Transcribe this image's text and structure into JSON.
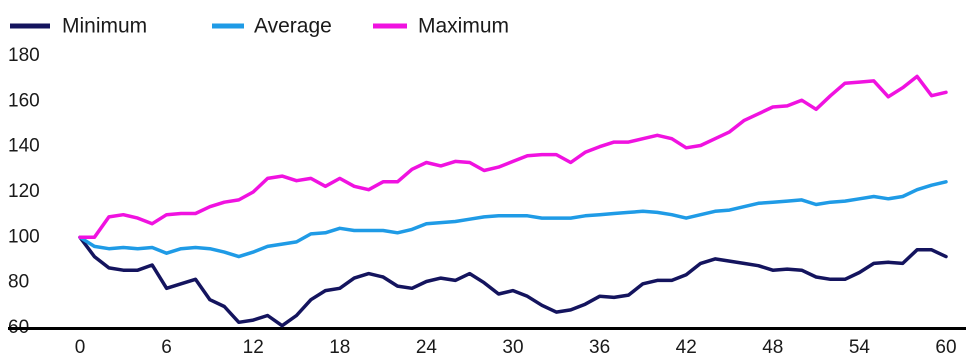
{
  "chart_data": {
    "type": "line",
    "title": "",
    "xlabel": "",
    "ylabel": "",
    "xlim": [
      0,
      60
    ],
    "ylim": [
      60,
      180
    ],
    "x_ticks": [
      "0",
      "6",
      "12",
      "18",
      "24",
      "30",
      "36",
      "42",
      "48",
      "54",
      "60"
    ],
    "y_ticks": [
      "60",
      "80",
      "100",
      "120",
      "140",
      "160",
      "180"
    ],
    "grid": false,
    "legend_position": "top-left",
    "x": [
      0,
      1,
      2,
      3,
      4,
      5,
      6,
      7,
      8,
      9,
      10,
      11,
      12,
      13,
      14,
      15,
      16,
      17,
      18,
      19,
      20,
      21,
      22,
      23,
      24,
      25,
      26,
      27,
      28,
      29,
      30,
      31,
      32,
      33,
      34,
      35,
      36,
      37,
      38,
      39,
      40,
      41,
      42,
      43,
      44,
      45,
      46,
      47,
      48,
      49,
      50,
      51,
      52,
      53,
      54,
      55,
      56,
      57,
      58,
      59,
      60
    ],
    "series": [
      {
        "name": "Minimum",
        "color": "#14145e",
        "values": [
          100,
          91.5,
          86.5,
          85.5,
          85.5,
          87.8,
          77.5,
          79.5,
          81.5,
          72.5,
          69.5,
          62.5,
          63.5,
          65.5,
          61,
          65.5,
          72.5,
          76.5,
          77.5,
          82,
          84,
          82.5,
          78.5,
          77.5,
          80.5,
          82,
          81,
          84,
          80,
          75,
          76.5,
          74,
          70,
          67,
          68,
          70.5,
          74,
          73.5,
          74.5,
          79.5,
          81,
          81,
          83.5,
          88.5,
          90.5,
          89.5,
          88.5,
          87.5,
          85.5,
          86,
          85.5,
          82.5,
          81.5,
          81.5,
          84.5,
          88.5,
          89,
          88.5,
          94.5,
          94.5,
          91.5
        ]
      },
      {
        "name": "Average",
        "color": "#1f9be6",
        "values": [
          100,
          96,
          95,
          95.5,
          95,
          95.5,
          93,
          95,
          95.5,
          95,
          93.5,
          91.5,
          93.5,
          96,
          97,
          98,
          101.5,
          102,
          104,
          103,
          103,
          103,
          102,
          103.5,
          106,
          106.5,
          107,
          108,
          109,
          109.5,
          109.5,
          109.5,
          108.5,
          108.5,
          108.5,
          109.5,
          110,
          110.5,
          111,
          111.5,
          111,
          110,
          108.5,
          110,
          111.5,
          112,
          113.5,
          115,
          115.5,
          116,
          116.5,
          114.5,
          115.5,
          116,
          117,
          118,
          117,
          118,
          121,
          123,
          124.5
        ]
      },
      {
        "name": "Maximum",
        "color": "#f012e0",
        "values": [
          100,
          100,
          109,
          110,
          108.5,
          106,
          110,
          110.5,
          110.5,
          113.5,
          115.5,
          116.5,
          120,
          126,
          127,
          125,
          126,
          122.5,
          126,
          122.5,
          121,
          124.5,
          124.5,
          130,
          133,
          131.5,
          133.5,
          133,
          129.5,
          131,
          133.5,
          136,
          136.5,
          136.5,
          133,
          137.5,
          140,
          142,
          142,
          143.5,
          145,
          143.5,
          139.5,
          140.5,
          143.5,
          146.5,
          151.5,
          154.5,
          157.5,
          158,
          160.5,
          156.5,
          162.5,
          168,
          168.5,
          169,
          162,
          166,
          171,
          162.5,
          164
        ]
      }
    ]
  }
}
